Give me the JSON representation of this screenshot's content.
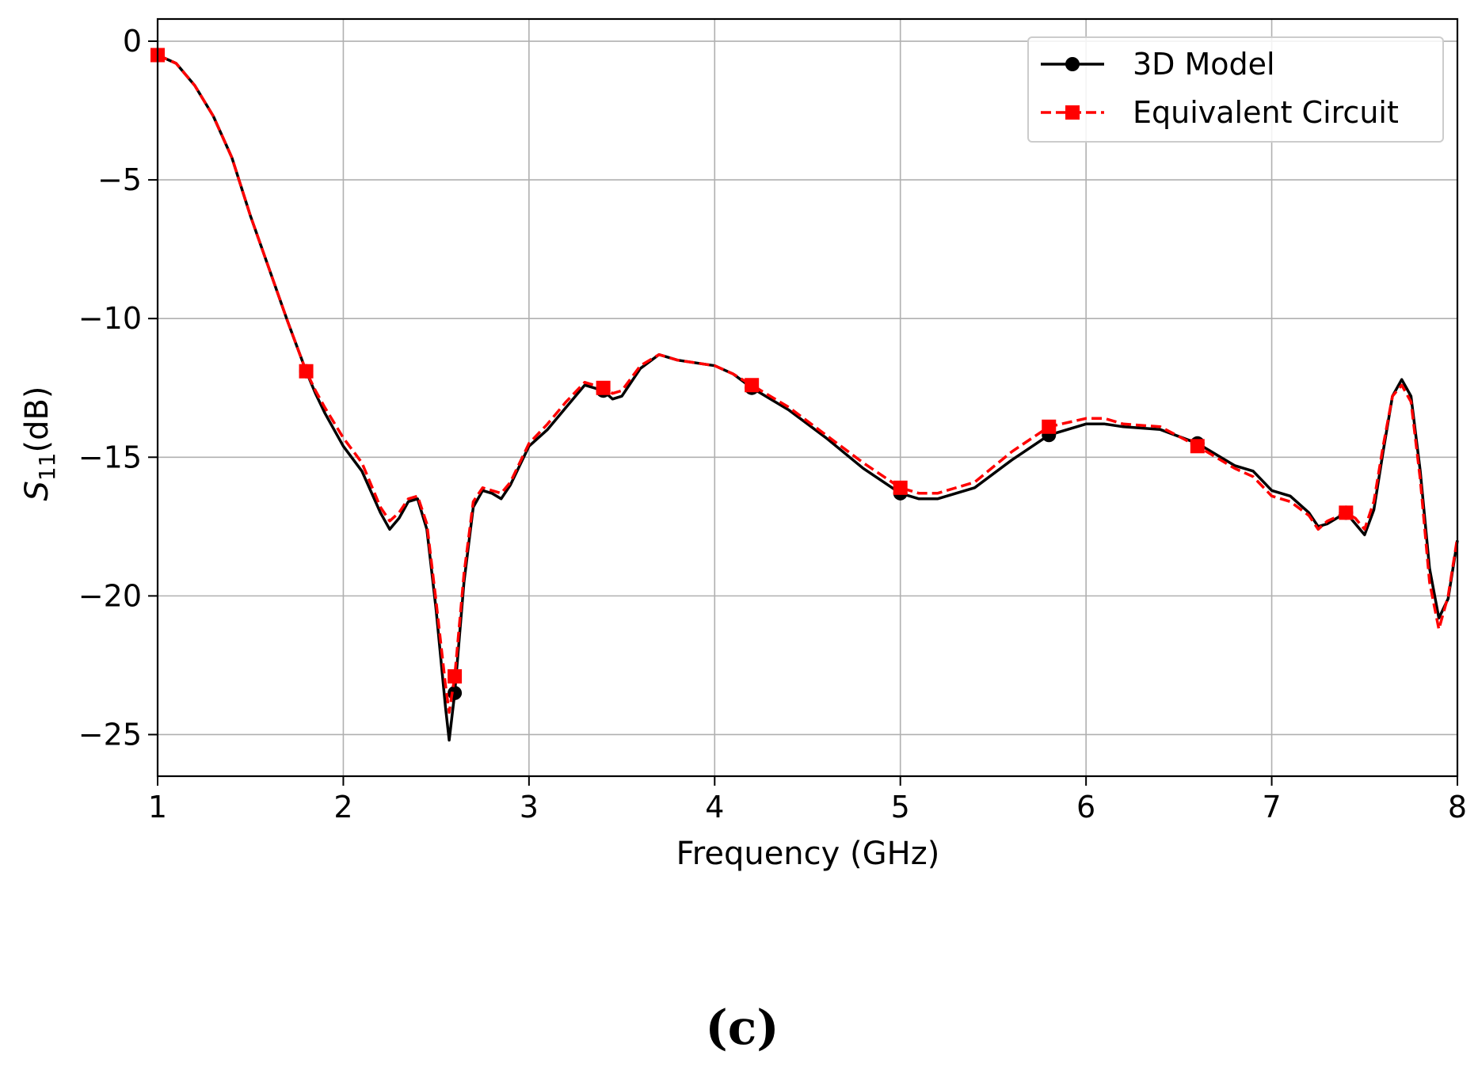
{
  "chart_data": {
    "type": "line",
    "title": "",
    "xlabel": "Frequency (GHz)",
    "ylabel": {
      "base": "S",
      "subscript": "11",
      "suffix": "(dB)"
    },
    "xlim": [
      1,
      8
    ],
    "ylim": [
      -26.5,
      0.8
    ],
    "xticks": [
      1,
      2,
      3,
      4,
      5,
      6,
      7,
      8
    ],
    "yticks": [
      0,
      -5,
      -10,
      -15,
      -20,
      -25
    ],
    "xtick_labels": [
      "1",
      "2",
      "3",
      "4",
      "5",
      "6",
      "7",
      "8"
    ],
    "ytick_labels": [
      "0",
      "−5",
      "−10",
      "−15",
      "−20",
      "−25"
    ],
    "grid": true,
    "legend_position": "top-right",
    "series": [
      {
        "name": "3D Model",
        "color": "#000000",
        "line_style": "solid",
        "marker": "circle",
        "markers_x": [
          1.0,
          1.8,
          2.6,
          3.4,
          4.2,
          5.0,
          5.8,
          6.6,
          7.4
        ],
        "x": [
          1.0,
          1.1,
          1.2,
          1.3,
          1.4,
          1.5,
          1.6,
          1.7,
          1.8,
          1.85,
          1.9,
          2.0,
          2.1,
          2.2,
          2.25,
          2.3,
          2.35,
          2.4,
          2.45,
          2.5,
          2.55,
          2.57,
          2.6,
          2.65,
          2.7,
          2.75,
          2.8,
          2.85,
          2.9,
          3.0,
          3.1,
          3.2,
          3.3,
          3.4,
          3.45,
          3.5,
          3.6,
          3.7,
          3.8,
          3.9,
          4.0,
          4.1,
          4.2,
          4.4,
          4.6,
          4.8,
          5.0,
          5.1,
          5.2,
          5.4,
          5.6,
          5.8,
          6.0,
          6.1,
          6.2,
          6.4,
          6.6,
          6.8,
          6.9,
          7.0,
          7.1,
          7.2,
          7.25,
          7.3,
          7.4,
          7.45,
          7.5,
          7.55,
          7.6,
          7.65,
          7.7,
          7.75,
          7.8,
          7.85,
          7.9,
          7.95,
          8.0
        ],
        "y": [
          -0.5,
          -0.8,
          -1.6,
          -2.7,
          -4.2,
          -6.3,
          -8.2,
          -10.1,
          -11.9,
          -12.7,
          -13.4,
          -14.6,
          -15.5,
          -17.0,
          -17.6,
          -17.2,
          -16.6,
          -16.5,
          -17.6,
          -20.5,
          -24.0,
          -25.2,
          -23.5,
          -19.5,
          -16.8,
          -16.2,
          -16.3,
          -16.5,
          -16.0,
          -14.6,
          -14.0,
          -13.2,
          -12.4,
          -12.6,
          -12.9,
          -12.8,
          -11.8,
          -11.3,
          -11.5,
          -11.6,
          -11.7,
          -12.0,
          -12.5,
          -13.3,
          -14.3,
          -15.4,
          -16.3,
          -16.5,
          -16.5,
          -16.1,
          -15.1,
          -14.2,
          -13.8,
          -13.8,
          -13.9,
          -14.0,
          -14.5,
          -15.3,
          -15.5,
          -16.2,
          -16.4,
          -17.0,
          -17.5,
          -17.4,
          -17.0,
          -17.4,
          -17.8,
          -16.9,
          -14.8,
          -12.8,
          -12.2,
          -12.8,
          -15.5,
          -19.0,
          -20.8,
          -20.1,
          -18.0
        ]
      },
      {
        "name": "Equivalent Circuit",
        "color": "#ff0000",
        "line_style": "dashed",
        "marker": "square",
        "markers_x": [
          1.0,
          1.8,
          2.6,
          3.4,
          4.2,
          5.0,
          5.8,
          6.6,
          7.4
        ],
        "x": [
          1.0,
          1.1,
          1.2,
          1.3,
          1.4,
          1.5,
          1.6,
          1.7,
          1.8,
          1.85,
          1.9,
          2.0,
          2.1,
          2.2,
          2.25,
          2.3,
          2.35,
          2.4,
          2.45,
          2.5,
          2.55,
          2.57,
          2.6,
          2.65,
          2.7,
          2.75,
          2.8,
          2.85,
          2.9,
          3.0,
          3.1,
          3.2,
          3.3,
          3.4,
          3.45,
          3.5,
          3.6,
          3.7,
          3.8,
          3.9,
          4.0,
          4.1,
          4.2,
          4.4,
          4.6,
          4.8,
          5.0,
          5.1,
          5.2,
          5.4,
          5.6,
          5.8,
          6.0,
          6.1,
          6.2,
          6.4,
          6.6,
          6.8,
          6.9,
          7.0,
          7.1,
          7.2,
          7.25,
          7.3,
          7.4,
          7.45,
          7.5,
          7.55,
          7.6,
          7.65,
          7.7,
          7.75,
          7.8,
          7.85,
          7.9,
          7.95,
          8.0
        ],
        "y": [
          -0.5,
          -0.8,
          -1.6,
          -2.7,
          -4.2,
          -6.3,
          -8.2,
          -10.1,
          -11.9,
          -12.6,
          -13.2,
          -14.3,
          -15.2,
          -16.8,
          -17.3,
          -17.0,
          -16.5,
          -16.4,
          -17.4,
          -20.2,
          -23.2,
          -24.2,
          -22.9,
          -19.2,
          -16.6,
          -16.1,
          -16.2,
          -16.3,
          -15.9,
          -14.5,
          -13.8,
          -13.0,
          -12.3,
          -12.5,
          -12.7,
          -12.6,
          -11.7,
          -11.3,
          -11.5,
          -11.6,
          -11.7,
          -12.0,
          -12.4,
          -13.2,
          -14.2,
          -15.2,
          -16.1,
          -16.3,
          -16.3,
          -15.9,
          -14.8,
          -13.9,
          -13.6,
          -13.6,
          -13.8,
          -13.9,
          -14.6,
          -15.4,
          -15.7,
          -16.4,
          -16.6,
          -17.1,
          -17.6,
          -17.3,
          -17.0,
          -17.2,
          -17.6,
          -16.6,
          -14.6,
          -12.8,
          -12.4,
          -13.0,
          -15.8,
          -19.5,
          -21.2,
          -20.0,
          -17.9
        ]
      }
    ]
  },
  "caption": "(c)"
}
